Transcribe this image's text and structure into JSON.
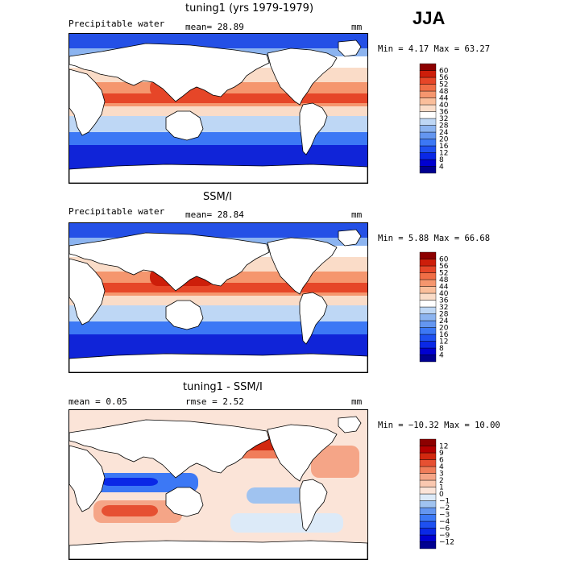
{
  "season": "JJA",
  "panels": [
    {
      "title": "tuning1 (yrs 1979-1979)",
      "left_label": "Precipitable water",
      "center_label": "mean=  28.89",
      "units": "mm",
      "stats": "Min =   4.17 Max =  63.27"
    },
    {
      "title": "SSM/I",
      "left_label": "Precipitable water",
      "center_label": "mean=  28.84",
      "units": "mm",
      "stats": "Min =   5.88 Max =  66.68"
    },
    {
      "title": "tuning1 - SSM/I",
      "left_label": "mean =    0.05",
      "center_label": "rmse =    2.52",
      "units": "mm",
      "stats": "Min = −10.32 Max =  10.00"
    }
  ],
  "chart_data": [
    {
      "type": "heatmap",
      "title": "tuning1 (yrs 1979-1979)",
      "variable": "Precipitable water",
      "units": "mm",
      "mean": 28.89,
      "min": 4.17,
      "max": 63.27,
      "colorbar": {
        "ticks": [
          4,
          8,
          12,
          16,
          20,
          24,
          28,
          32,
          36,
          40,
          44,
          48,
          52,
          56,
          60
        ],
        "colors": [
          "#000090",
          "#0000d0",
          "#0a28e6",
          "#1e50f0",
          "#3c78f5",
          "#6496f0",
          "#8cb4f0",
          "#bed7f5",
          "#ffffff",
          "#fadcc8",
          "#fabe9b",
          "#f5966e",
          "#f06e46",
          "#e64628",
          "#cd1e0a",
          "#8c0000"
        ]
      }
    },
    {
      "type": "heatmap",
      "title": "SSM/I",
      "variable": "Precipitable water",
      "units": "mm",
      "mean": 28.84,
      "min": 5.88,
      "max": 66.68,
      "colorbar": {
        "ticks": [
          4,
          8,
          12,
          16,
          20,
          24,
          28,
          32,
          36,
          40,
          44,
          48,
          52,
          56,
          60
        ],
        "colors": [
          "#000090",
          "#0000d0",
          "#0a28e6",
          "#1e50f0",
          "#3c78f5",
          "#6496f0",
          "#8cb4f0",
          "#bed7f5",
          "#ffffff",
          "#fadcc8",
          "#fabe9b",
          "#f5966e",
          "#f06e46",
          "#e64628",
          "#cd1e0a",
          "#8c0000"
        ]
      }
    },
    {
      "type": "heatmap",
      "title": "tuning1 - SSM/I",
      "units": "mm",
      "mean": 0.05,
      "rmse": 2.52,
      "min": -10.32,
      "max": 10.0,
      "colorbar": {
        "ticks": [
          "−12",
          "−9",
          "−6",
          "−4",
          "−3",
          "−2",
          "−1",
          "0",
          "1",
          "2",
          "3",
          "4",
          "6",
          "9",
          "12"
        ],
        "colors": [
          "#000090",
          "#0000d0",
          "#0a28e6",
          "#1e50f0",
          "#3c78f5",
          "#6496f0",
          "#a0c3f0",
          "#dceaf8",
          "#fbe4d8",
          "#fac8b0",
          "#f5a587",
          "#f07d5a",
          "#e65032",
          "#d2280f",
          "#b40000",
          "#8c0000"
        ]
      }
    }
  ]
}
